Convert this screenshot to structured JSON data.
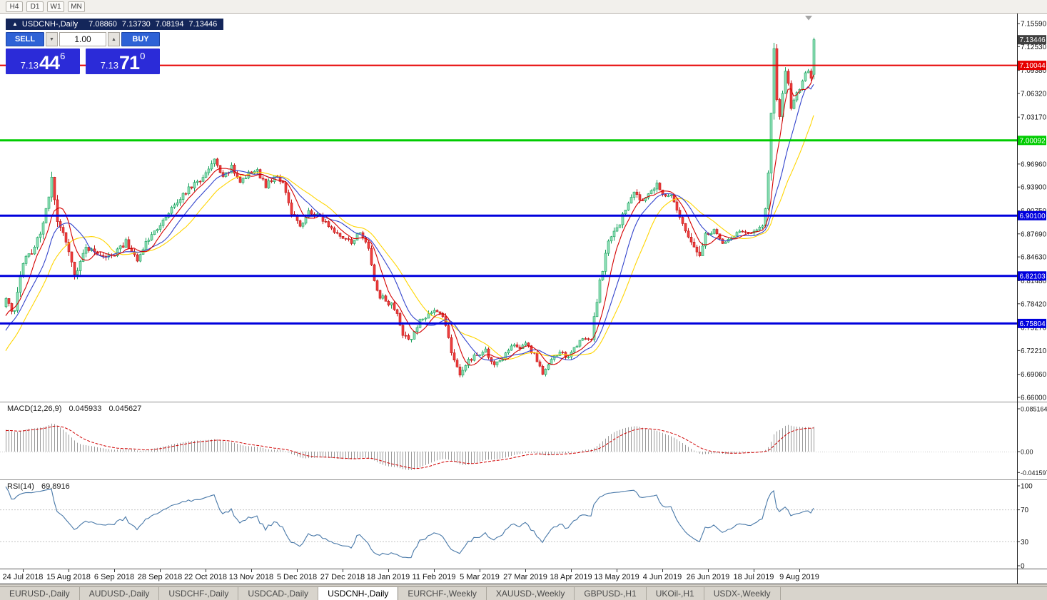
{
  "toolbar": {
    "buttons": [
      {
        "label": "H4"
      },
      {
        "label": "D1"
      },
      {
        "label": "W1"
      },
      {
        "label": "MN"
      }
    ]
  },
  "chart_header": {
    "icon": "▲",
    "symbol_title": "USDCNH-,Daily",
    "open": "7.08860",
    "high": "7.13730",
    "low": "7.08194",
    "close": "7.13446"
  },
  "trade_panel": {
    "sell_label": "SELL",
    "buy_label": "BUY",
    "volume": "1.00",
    "spinner_down_icon": "▼",
    "spinner_up_icon": "▲",
    "sell_price": {
      "prefix": "7.13",
      "big": "44",
      "sup": "6"
    },
    "buy_price": {
      "prefix": "7.13",
      "big": "71",
      "sup": "0"
    },
    "colors": {
      "button": "#2e62d6",
      "button_border": "#1c44a6",
      "price_box": "#2b2bd8"
    }
  },
  "chart_data": {
    "type": "candlestick",
    "symbol": "USDCNH",
    "timeframe": "Daily",
    "title": "USDCNH-,Daily 7.08860 7.13730 7.08194 7.13446",
    "last_quote": {
      "open": 7.0886,
      "high": 7.1373,
      "low": 7.08194,
      "close": 7.13446,
      "bid": 7.13446,
      "ask": 7.1371
    },
    "y_axis": {
      "top": 7.1559,
      "bottom": 6.66,
      "labels": [
        "7.15590",
        "7.12530",
        "7.09380",
        "7.06320",
        "7.03170",
        "6.96960",
        "6.93900",
        "6.90750",
        "6.87690",
        "6.84630",
        "6.81480",
        "6.78420",
        "6.75270",
        "6.72210",
        "6.69060",
        "6.66000"
      ]
    },
    "x_axis": {
      "tick_interval": 16,
      "labels": [
        {
          "i": 6,
          "label": "24 Jul 2018"
        },
        {
          "i": 22,
          "label": "15 Aug 2018"
        },
        {
          "i": 38,
          "label": "6 Sep 2018"
        },
        {
          "i": 54,
          "label": "28 Sep 2018"
        },
        {
          "i": 70,
          "label": "22 Oct 2018"
        },
        {
          "i": 86,
          "label": "13 Nov 2018"
        },
        {
          "i": 102,
          "label": "5 Dec 2018"
        },
        {
          "i": 118,
          "label": "27 Dec 2018"
        },
        {
          "i": 134,
          "label": "18 Jan 2019"
        },
        {
          "i": 150,
          "label": "11 Feb 2019"
        },
        {
          "i": 166,
          "label": "5 Mar 2019"
        },
        {
          "i": 182,
          "label": "27 Mar 2019"
        },
        {
          "i": 198,
          "label": "18 Apr 2019"
        },
        {
          "i": 214,
          "label": "13 May 2019"
        },
        {
          "i": 230,
          "label": "4 Jun 2019"
        },
        {
          "i": 246,
          "label": "26 Jun 2019"
        },
        {
          "i": 262,
          "label": "18 Jul 2019"
        },
        {
          "i": 278,
          "label": "9 Aug 2019"
        }
      ]
    },
    "hlines": [
      {
        "value": 7.10044,
        "label": "7.10044",
        "color": "#e60000",
        "width": 2
      },
      {
        "value": 7.00092,
        "label": "7.00092",
        "color": "#00cc00",
        "width": 3
      },
      {
        "value": 6.901,
        "label": "6.90100",
        "color": "#0000dd",
        "width": 3
      },
      {
        "value": 6.82103,
        "label": "6.82103",
        "color": "#0000dd",
        "width": 3
      },
      {
        "value": 6.75804,
        "label": "6.75804",
        "color": "#0000dd",
        "width": 3
      }
    ],
    "price_tag": {
      "label": "7.13446",
      "color": "#404040"
    },
    "prehistory": {
      "bars": 40,
      "from": 6.52,
      "to": 6.782
    },
    "candles": {
      "count": 284,
      "up_fill": "#90e0b8",
      "up_stroke": "#18a05c",
      "down_fill": "#ef3e3e",
      "down_stroke": "#c01616",
      "keyframes": [
        [
          0,
          6.795,
          0.013
        ],
        [
          3,
          6.772,
          0.013
        ],
        [
          6,
          6.842,
          0.012
        ],
        [
          10,
          6.858,
          0.01
        ],
        [
          13,
          6.888,
          0.012
        ],
        [
          16,
          6.952,
          0.013
        ],
        [
          18,
          6.896,
          0.012
        ],
        [
          20,
          6.88,
          0.01
        ],
        [
          24,
          6.822,
          0.011
        ],
        [
          28,
          6.86,
          0.009
        ],
        [
          32,
          6.852,
          0.008
        ],
        [
          37,
          6.846,
          0.008
        ],
        [
          42,
          6.866,
          0.008
        ],
        [
          46,
          6.842,
          0.008
        ],
        [
          50,
          6.872,
          0.008
        ],
        [
          53,
          6.886,
          0.008
        ],
        [
          58,
          6.912,
          0.008
        ],
        [
          62,
          6.93,
          0.008
        ],
        [
          66,
          6.942,
          0.008
        ],
        [
          70,
          6.956,
          0.008
        ],
        [
          73,
          6.974,
          0.008
        ],
        [
          76,
          6.952,
          0.008
        ],
        [
          79,
          6.966,
          0.008
        ],
        [
          82,
          6.944,
          0.007
        ],
        [
          85,
          6.956,
          0.007
        ],
        [
          88,
          6.96,
          0.007
        ],
        [
          91,
          6.94,
          0.007
        ],
        [
          94,
          6.954,
          0.007
        ],
        [
          97,
          6.944,
          0.007
        ],
        [
          100,
          6.906,
          0.008
        ],
        [
          103,
          6.886,
          0.008
        ],
        [
          106,
          6.905,
          0.007
        ],
        [
          110,
          6.9,
          0.006
        ],
        [
          113,
          6.886,
          0.006
        ],
        [
          117,
          6.876,
          0.006
        ],
        [
          121,
          6.866,
          0.006
        ],
        [
          124,
          6.88,
          0.006
        ],
        [
          127,
          6.856,
          0.008
        ],
        [
          130,
          6.8,
          0.01
        ],
        [
          133,
          6.786,
          0.009
        ],
        [
          136,
          6.78,
          0.008
        ],
        [
          139,
          6.746,
          0.009
        ],
        [
          142,
          6.736,
          0.009
        ],
        [
          145,
          6.76,
          0.008
        ],
        [
          148,
          6.772,
          0.007
        ],
        [
          150,
          6.776,
          0.007
        ],
        [
          153,
          6.77,
          0.007
        ],
        [
          156,
          6.722,
          0.009
        ],
        [
          159,
          6.692,
          0.009
        ],
        [
          162,
          6.71,
          0.007
        ],
        [
          165,
          6.716,
          0.006
        ],
        [
          168,
          6.722,
          0.006
        ],
        [
          171,
          6.702,
          0.006
        ],
        [
          174,
          6.712,
          0.006
        ],
        [
          177,
          6.73,
          0.006
        ],
        [
          180,
          6.726,
          0.006
        ],
        [
          182,
          6.731,
          0.006
        ],
        [
          185,
          6.716,
          0.006
        ],
        [
          188,
          6.692,
          0.007
        ],
        [
          191,
          6.71,
          0.006
        ],
        [
          194,
          6.72,
          0.006
        ],
        [
          197,
          6.712,
          0.006
        ],
        [
          200,
          6.73,
          0.006
        ],
        [
          203,
          6.74,
          0.006
        ],
        [
          205,
          6.736,
          0.007
        ],
        [
          207,
          6.792,
          0.013
        ],
        [
          209,
          6.832,
          0.012
        ],
        [
          211,
          6.868,
          0.01
        ],
        [
          214,
          6.882,
          0.009
        ],
        [
          217,
          6.91,
          0.008
        ],
        [
          220,
          6.93,
          0.008
        ],
        [
          223,
          6.921,
          0.007
        ],
        [
          226,
          6.936,
          0.007
        ],
        [
          228,
          6.942,
          0.008
        ],
        [
          230,
          6.93,
          0.007
        ],
        [
          233,
          6.926,
          0.006
        ],
        [
          236,
          6.902,
          0.007
        ],
        [
          239,
          6.872,
          0.008
        ],
        [
          242,
          6.856,
          0.011
        ],
        [
          243,
          6.85,
          0.014
        ],
        [
          245,
          6.876,
          0.007
        ],
        [
          248,
          6.882,
          0.005
        ],
        [
          251,
          6.866,
          0.005
        ],
        [
          254,
          6.872,
          0.005
        ],
        [
          257,
          6.88,
          0.005
        ],
        [
          260,
          6.876,
          0.005
        ],
        [
          263,
          6.882,
          0.005
        ],
        [
          265,
          6.89,
          0.006
        ],
        [
          266,
          6.906,
          0.01
        ],
        [
          267,
          6.962,
          0.016
        ],
        [
          268,
          7.042,
          0.02
        ],
        [
          269,
          7.12,
          0.018
        ],
        [
          270,
          7.052,
          0.016
        ],
        [
          271,
          7.032,
          0.012
        ],
        [
          272,
          7.066,
          0.01
        ],
        [
          273,
          7.09,
          0.009
        ],
        [
          274,
          7.074,
          0.008
        ],
        [
          275,
          7.046,
          0.008
        ],
        [
          276,
          7.056,
          0.007
        ],
        [
          277,
          7.066,
          0.007
        ],
        [
          278,
          7.07,
          0.006
        ],
        [
          279,
          7.078,
          0.006
        ],
        [
          280,
          7.088,
          0.007
        ],
        [
          281,
          7.095,
          0.007
        ],
        [
          282,
          7.086,
          0.006
        ],
        [
          283,
          7.13446,
          0.005
        ]
      ]
    },
    "moving_averages": [
      {
        "period": 7,
        "color": "#d40000"
      },
      {
        "period": 13,
        "color": "#3344cc"
      },
      {
        "period": 21,
        "color": "#ffd500"
      }
    ],
    "indicator_panels": [
      {
        "label": "MACD(12,26,9)",
        "value_1": "0.045933",
        "value_2": "0.045627",
        "scale_labels": [
          "0.085164",
          "0.00",
          "-0.041597"
        ],
        "histogram_color": "#999999",
        "signal_color": "#d00000"
      },
      {
        "label": "RSI(14)",
        "value_1": "69.8916",
        "scale_labels": [
          "100",
          "70",
          "30",
          "0"
        ],
        "levels": [
          70,
          30
        ],
        "line_color": "#4878a8"
      }
    ]
  },
  "tabs": {
    "active": "USDCNH-,Daily",
    "items": [
      "EURUSD-,Daily",
      "AUDUSD-,Daily",
      "USDCHF-,Daily",
      "USDCAD-,Daily",
      "USDCNH-,Daily",
      "EURCHF-,Weekly",
      "XAUUSD-,Weekly",
      "GBPUSD-,H1",
      "UKOil-,H1",
      "USDX-,Weekly"
    ]
  }
}
